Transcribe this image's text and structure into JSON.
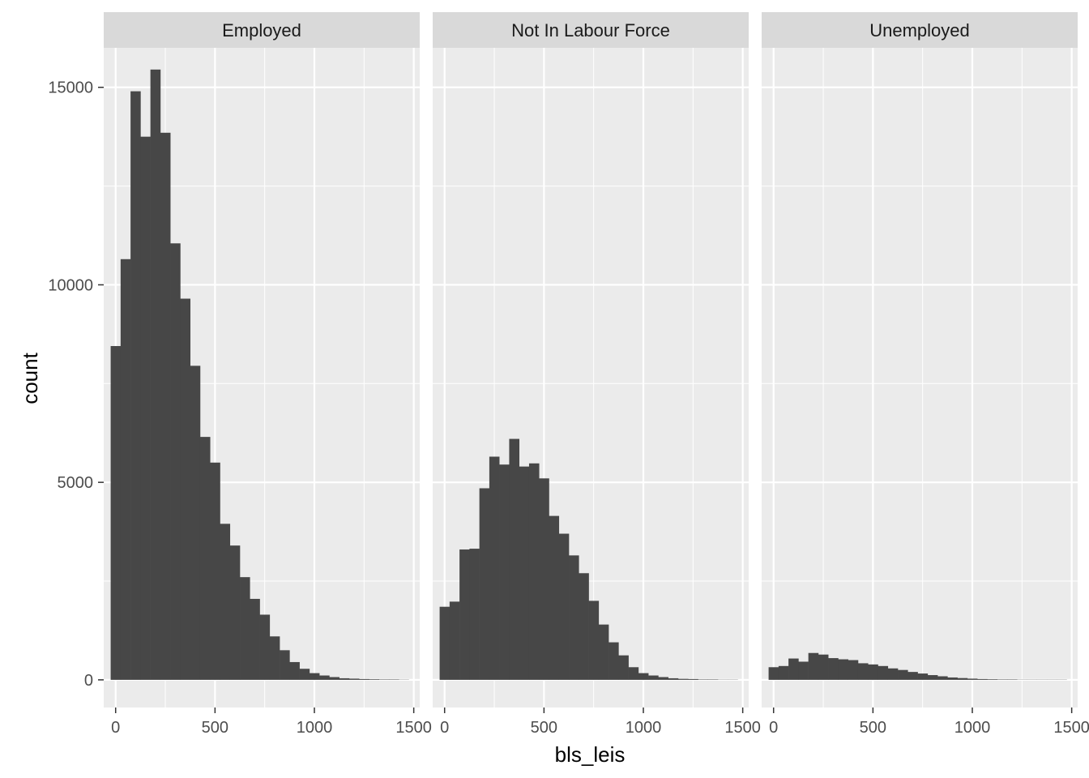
{
  "chart_data": {
    "type": "bar",
    "xlabel": "bls_leis",
    "ylabel": "count",
    "xlim": [
      -60,
      1530
    ],
    "ylim": [
      -700,
      16000
    ],
    "x_ticks": [
      0,
      500,
      1000,
      1500
    ],
    "x_tick_labels": [
      "0",
      "500",
      "1000",
      "1500"
    ],
    "y_ticks": [
      0,
      5000,
      10000,
      15000
    ],
    "y_tick_labels": [
      "0",
      "5000",
      "10000",
      "15000"
    ],
    "bin_width": 50,
    "bin_starts": [
      -25,
      25,
      75,
      125,
      175,
      225,
      275,
      325,
      375,
      425,
      475,
      525,
      575,
      625,
      675,
      725,
      775,
      825,
      875,
      925,
      975,
      1025,
      1075,
      1125,
      1175,
      1225,
      1275,
      1325,
      1375,
      1425
    ],
    "grid": true,
    "legend": "none",
    "colors": {
      "bar": "#474747",
      "panel_bg": "#ebebeb",
      "strip_bg": "#d9d9d9",
      "grid": "#ffffff"
    },
    "panels": [
      {
        "name": "Employed",
        "values": [
          8450,
          10650,
          14900,
          13750,
          15450,
          13850,
          11050,
          9650,
          7950,
          6150,
          5500,
          3950,
          3400,
          2600,
          2050,
          1650,
          1100,
          750,
          450,
          280,
          170,
          110,
          70,
          40,
          30,
          20,
          15,
          10,
          10,
          5
        ]
      },
      {
        "name": "Not In Labour Force",
        "values": [
          1850,
          1980,
          3300,
          3320,
          4850,
          5650,
          5450,
          6100,
          5400,
          5480,
          5100,
          4150,
          3700,
          3150,
          2700,
          2000,
          1400,
          950,
          620,
          320,
          170,
          110,
          70,
          40,
          25,
          20,
          10,
          10,
          5,
          5
        ]
      },
      {
        "name": "Unemployed",
        "values": [
          320,
          350,
          540,
          460,
          680,
          640,
          550,
          520,
          500,
          420,
          390,
          350,
          290,
          250,
          200,
          160,
          120,
          90,
          60,
          45,
          30,
          20,
          15,
          10,
          10,
          5,
          5,
          5,
          5,
          5
        ]
      }
    ]
  }
}
